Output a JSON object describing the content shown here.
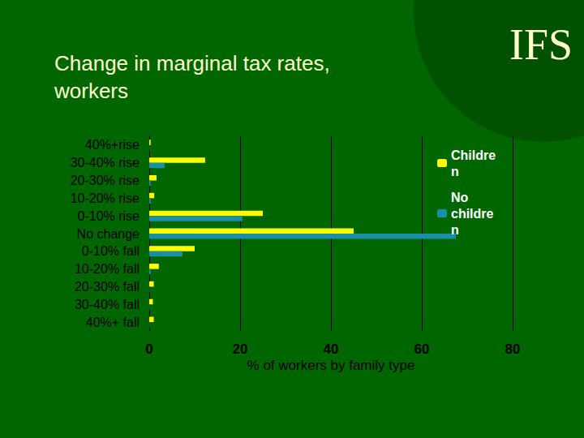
{
  "chart_data": {
    "type": "bar",
    "orientation": "horizontal",
    "title": "Change in marginal tax rates, workers",
    "annotations": [
      "IFS"
    ],
    "x_label": "% of workers by family type",
    "categories": [
      "40%+rise",
      "30-40% rise",
      "20-30% rise",
      "10-20% rise",
      "0-10% rise",
      "No change",
      "0-10% fall",
      "10-20% fall",
      "20-30% fall",
      "30-40% fall",
      "40%+ fall"
    ],
    "series": [
      {
        "name": "Children",
        "color": "#ffff00",
        "values": [
          0.3,
          12.3,
          1.6,
          1.1,
          25,
          45,
          10,
          2.1,
          1.0,
          0.8,
          1.0
        ]
      },
      {
        "name": "No children",
        "color": "#1a8fa8",
        "values": [
          0.1,
          3.4,
          0.3,
          0.3,
          20.5,
          67.5,
          7.3,
          0.3,
          0.1,
          0.1,
          0.1
        ]
      }
    ],
    "xlim": [
      0,
      80
    ],
    "xticks": [
      0,
      20,
      40,
      60,
      80
    ],
    "grid": true,
    "legend": "upper right"
  }
}
